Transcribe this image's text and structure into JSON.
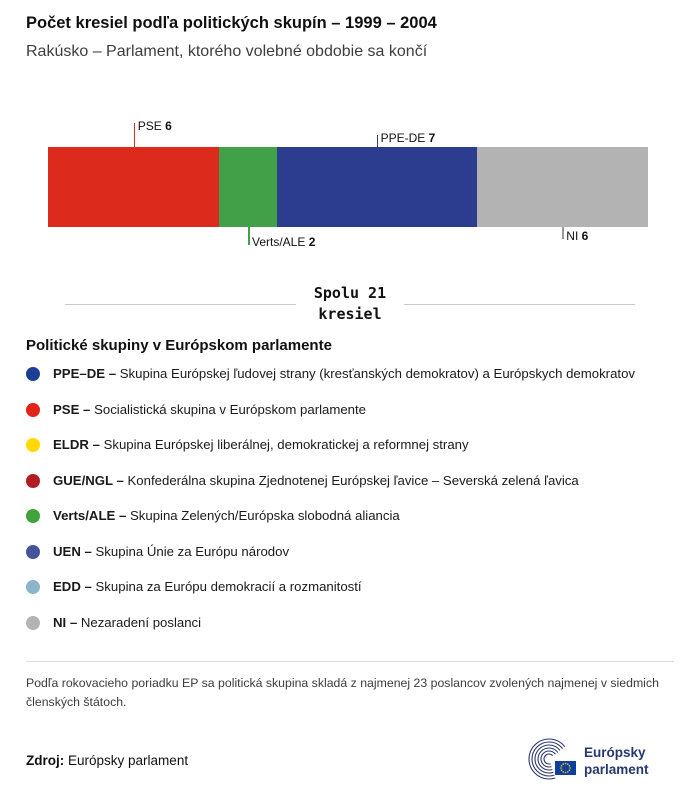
{
  "header": {
    "title": "Počet kresiel podľa politických skupín – 1999 – 2004",
    "subtitle": "Rakúsko – Parlament, ktorého volebné obdobie sa končí"
  },
  "chart_data": {
    "type": "bar",
    "variant": "horizontal-stacked",
    "title": "Počet kresiel podľa politických skupín – 1999 – 2004",
    "total_seats": 21,
    "total_label": "Spolu 21 kresiel",
    "segments": [
      {
        "name": "PSE",
        "value": 6,
        "color": "#dc2b1c",
        "label_side": "top",
        "tick": 24
      },
      {
        "name": "Verts/ALE",
        "value": 2,
        "color": "#41a048",
        "label_side": "bottom",
        "tick": 18
      },
      {
        "name": "PPE-DE",
        "value": 7,
        "color": "#2c3d8f",
        "label_side": "top",
        "tick": 12
      },
      {
        "name": "NI",
        "value": 6,
        "color": "#b3b3b3",
        "label_side": "bottom",
        "tick": 12,
        "tick_color": "#999999"
      }
    ]
  },
  "summary": {
    "line1": "Spolu 21",
    "line2": "kresiel"
  },
  "legend": {
    "title": "Politické skupiny v Európskom parlamente",
    "items": [
      {
        "label": "PPE–DE –",
        "desc": "Skupina Európskej ľudovej strany (kresťanských demokratov) a Európskych demokratov",
        "color": "#1c3e94"
      },
      {
        "label": "PSE –",
        "desc": "Socialistická skupina v Európskom parlamente",
        "color": "#e2231a"
      },
      {
        "label": "ELDR –",
        "desc": "Skupina Európskej liberálnej, demokratickej a reformnej strany",
        "color": "#ffd900"
      },
      {
        "label": "GUE/NGL –",
        "desc": "Konfederálna skupina Zjednotenej Európskej ľavice – Severská zelená ľavica",
        "color": "#b01e24"
      },
      {
        "label": "Verts/ALE –",
        "desc": "Skupina Zelených/Európska slobodná aliancia",
        "color": "#3fa43c"
      },
      {
        "label": "UEN –",
        "desc": "Skupina Únie za Európu národov",
        "color": "#44549c"
      },
      {
        "label": "EDD –",
        "desc": "Skupina za Európu demokracií a rozmanitostí",
        "color": "#8db3cd"
      },
      {
        "label": "NI –",
        "desc": "Nezaradení poslanci",
        "color": "#b3b3b3"
      }
    ]
  },
  "footnote": "Podľa rokovacieho poriadku EP sa politická skupina skladá z najmenej 23 poslancov zvolených najmenej v siedmich členských štátoch.",
  "source": {
    "label": "Zdroj:",
    "text": "Európsky parlament"
  },
  "logo": {
    "line1": "Európsky",
    "line2": "parlament"
  }
}
